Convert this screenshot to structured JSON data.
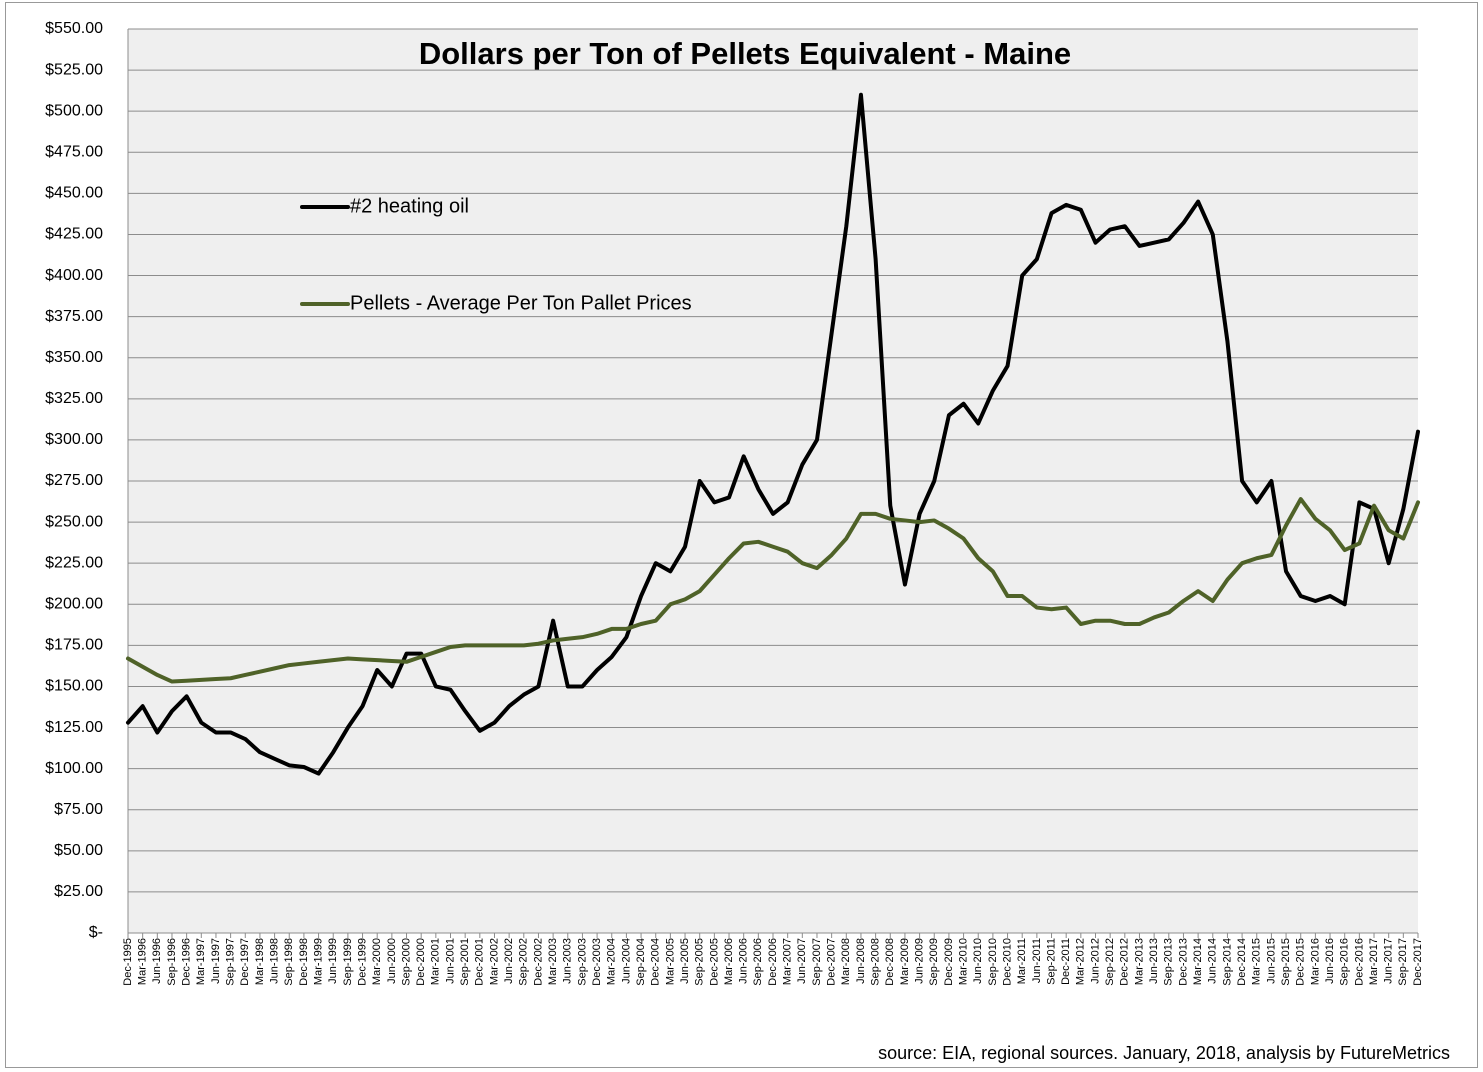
{
  "chart_data": {
    "type": "line",
    "title": "Dollars per Ton of Pellets Equivalent - Maine",
    "source": "source: EIA, regional sources. January, 2018, analysis by FutureMetrics",
    "categories": [
      "Dec-1995",
      "Mar-1996",
      "Jun-1996",
      "Sep-1996",
      "Dec-1996",
      "Mar-1997",
      "Jun-1997",
      "Sep-1997",
      "Dec-1997",
      "Mar-1998",
      "Jun-1998",
      "Sep-1998",
      "Dec-1998",
      "Mar-1999",
      "Jun-1999",
      "Sep-1999",
      "Dec-1999",
      "Mar-2000",
      "Jun-2000",
      "Sep-2000",
      "Dec-2000",
      "Mar-2001",
      "Jun-2001",
      "Sep-2001",
      "Dec-2001",
      "Mar-2002",
      "Jun-2002",
      "Sep-2002",
      "Dec-2002",
      "Mar-2003",
      "Jun-2003",
      "Sep-2003",
      "Dec-2003",
      "Mar-2004",
      "Jun-2004",
      "Sep-2004",
      "Dec-2004",
      "Mar-2005",
      "Jun-2005",
      "Sep-2005",
      "Dec-2005",
      "Mar-2006",
      "Jun-2006",
      "Sep-2006",
      "Dec-2006",
      "Mar-2007",
      "Jun-2007",
      "Sep-2007",
      "Dec-2007",
      "Mar-2008",
      "Jun-2008",
      "Sep-2008",
      "Dec-2008",
      "Mar-2009",
      "Jun-2009",
      "Sep-2009",
      "Dec-2009",
      "Mar-2010",
      "Jun-2010",
      "Sep-2010",
      "Dec-2010",
      "Mar-2011",
      "Jun-2011",
      "Sep-2011",
      "Dec-2011",
      "Mar-2012",
      "Jun-2012",
      "Sep-2012",
      "Dec-2012",
      "Mar-2013",
      "Jun-2013",
      "Sep-2013",
      "Dec-2013",
      "Mar-2014",
      "Jun-2014",
      "Sep-2014",
      "Dec-2014",
      "Mar-2015",
      "Jun-2015",
      "Sep-2015",
      "Dec-2015",
      "Mar-2016",
      "Jun-2016",
      "Sep-2016",
      "Dec-2016",
      "Mar-2017",
      "Jun-2017",
      "Sep-2017",
      "Dec-2017"
    ],
    "series": [
      {
        "name": "#2 heating oil",
        "color": "#000000",
        "values": [
          128,
          138,
          122,
          135,
          144,
          128,
          122,
          122,
          118,
          110,
          106,
          102,
          101,
          97,
          110,
          125,
          138,
          160,
          150,
          170,
          170,
          150,
          148,
          135,
          123,
          128,
          138,
          145,
          150,
          190,
          150,
          150,
          160,
          168,
          180,
          205,
          225,
          220,
          235,
          275,
          262,
          265,
          290,
          270,
          255,
          262,
          285,
          300,
          365,
          430,
          510,
          410,
          260,
          212,
          255,
          275,
          315,
          322,
          310,
          330,
          345,
          400,
          410,
          438,
          443,
          440,
          420,
          428,
          430,
          418,
          420,
          422,
          432,
          445,
          425,
          360,
          275,
          262,
          275,
          220,
          205,
          202,
          205,
          200,
          262,
          258,
          225,
          258,
          305
        ]
      },
      {
        "name": "Pellets - Average Per Ton Pallet Prices",
        "color": "#4f6228",
        "values": [
          167,
          162,
          157,
          153,
          153.5,
          154,
          154.5,
          155,
          157,
          159,
          161,
          163,
          164,
          165,
          166,
          167,
          166.5,
          166,
          165.5,
          165,
          168,
          171,
          174,
          175,
          175,
          175,
          175,
          175,
          176,
          178,
          179,
          180,
          182,
          185,
          185,
          188,
          190,
          200,
          203,
          208,
          218,
          228,
          237,
          238,
          235,
          232,
          225,
          222,
          230,
          240,
          255,
          255,
          252,
          251,
          250,
          251,
          246,
          240,
          228,
          220,
          205,
          205,
          198,
          197,
          198,
          188,
          190,
          190,
          188,
          188,
          192,
          195,
          202,
          208,
          202,
          215,
          225,
          228,
          230,
          248,
          264,
          252,
          245,
          233,
          237,
          260,
          245,
          240,
          262
        ]
      }
    ],
    "ylim": [
      0,
      550
    ],
    "yticks": [
      {
        "value": 0,
        "label": "$-"
      },
      {
        "value": 25,
        "label": "$25.00"
      },
      {
        "value": 50,
        "label": "$50.00"
      },
      {
        "value": 75,
        "label": "$75.00"
      },
      {
        "value": 100,
        "label": "$100.00"
      },
      {
        "value": 125,
        "label": "$125.00"
      },
      {
        "value": 150,
        "label": "$150.00"
      },
      {
        "value": 175,
        "label": "$175.00"
      },
      {
        "value": 200,
        "label": "$200.00"
      },
      {
        "value": 225,
        "label": "$225.00"
      },
      {
        "value": 250,
        "label": "$250.00"
      },
      {
        "value": 275,
        "label": "$275.00"
      },
      {
        "value": 300,
        "label": "$300.00"
      },
      {
        "value": 325,
        "label": "$325.00"
      },
      {
        "value": 350,
        "label": "$350.00"
      },
      {
        "value": 375,
        "label": "$375.00"
      },
      {
        "value": 400,
        "label": "$400.00"
      },
      {
        "value": 425,
        "label": "$425.00"
      },
      {
        "value": 450,
        "label": "$450.00"
      },
      {
        "value": 475,
        "label": "$475.00"
      },
      {
        "value": 500,
        "label": "$500.00"
      },
      {
        "value": 525,
        "label": "$525.00"
      },
      {
        "value": 550,
        "label": "$550.00"
      }
    ],
    "grid": true,
    "legend": "upper-left"
  }
}
